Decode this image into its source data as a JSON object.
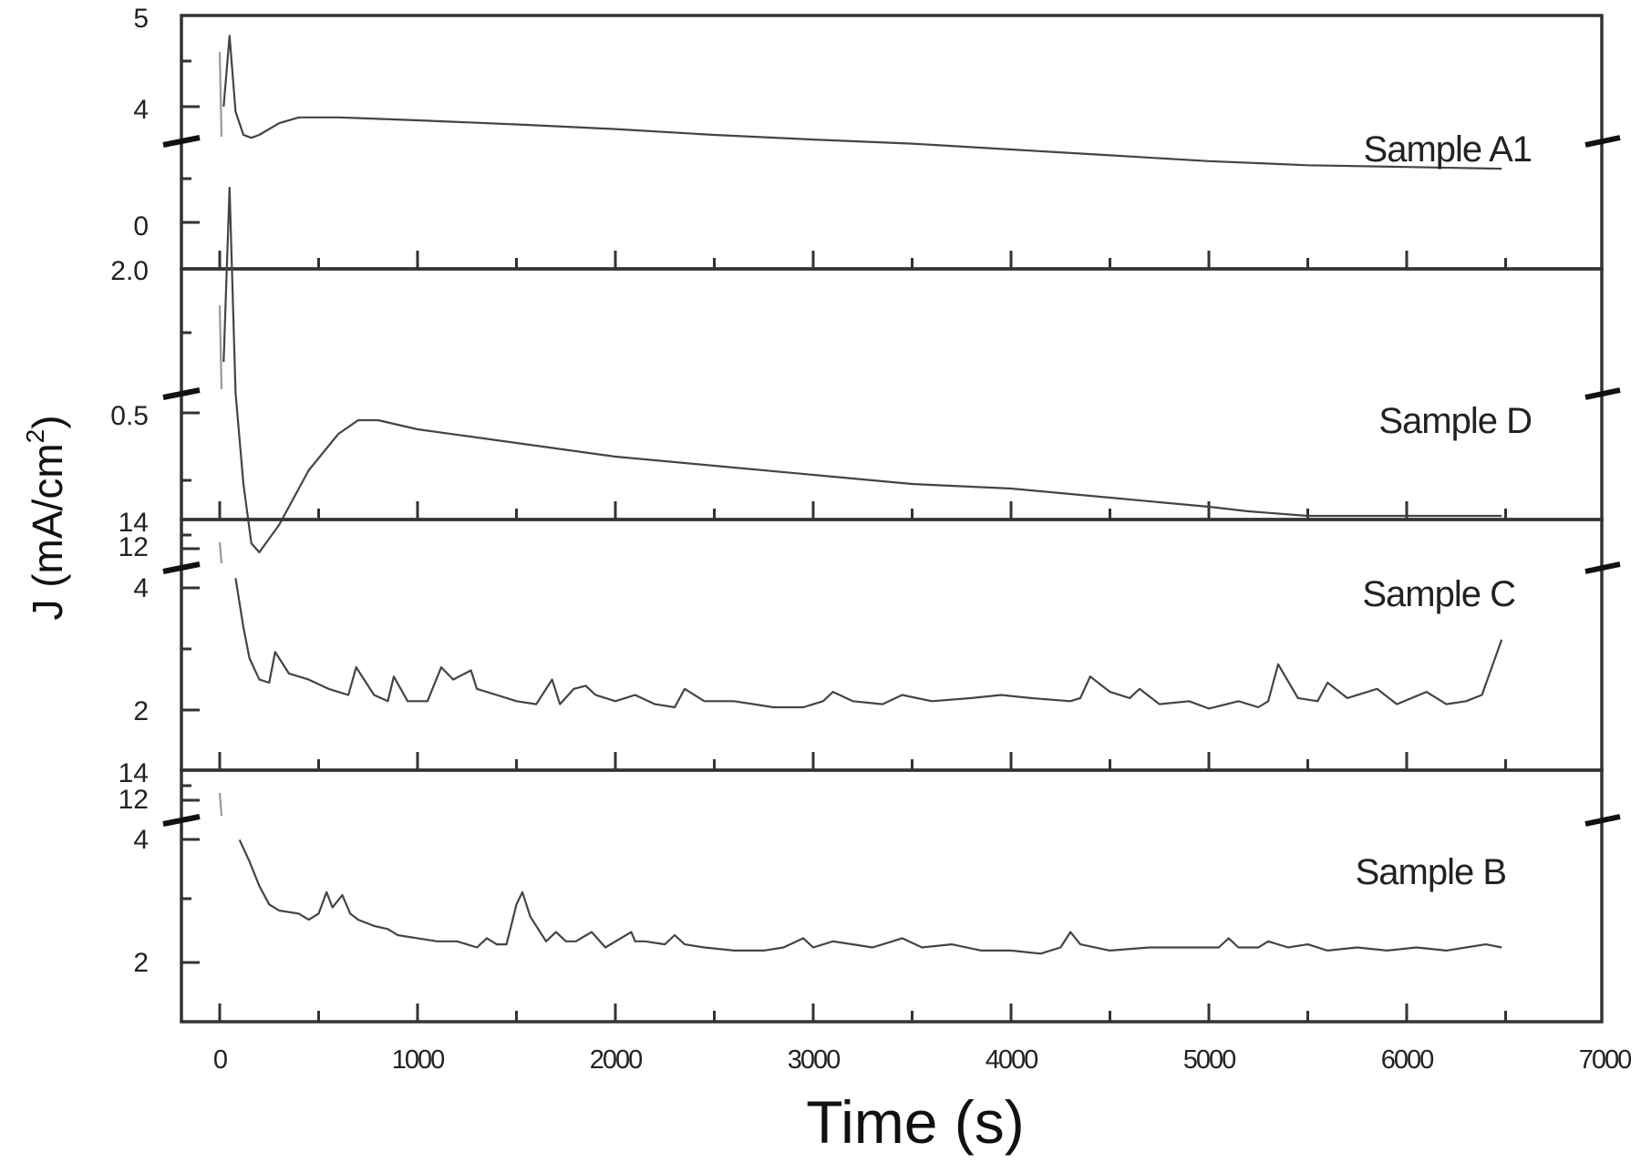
{
  "chart_data": {
    "type": "line",
    "title": "",
    "xlabel": "Time (s)",
    "ylabel": "J (mA/cm2)",
    "ylabel_parts": {
      "main": "J (mA/cm",
      "sup": "2",
      "close": ")"
    },
    "xlim": [
      -200,
      7000
    ],
    "x_ticks": [
      0,
      1000,
      2000,
      3000,
      4000,
      5000,
      6000,
      7000
    ],
    "x_tick_labels": [
      "0",
      "1000",
      "2000",
      "3000",
      "4000",
      "5000",
      "6000",
      "7000"
    ],
    "grid": false,
    "legend": "none (inline panel labels)",
    "layout": "4 vertically stacked panels sharing the time axis, each with a broken y-axis",
    "panels": [
      {
        "name": "Sample A1",
        "y_tick_labels": [
          "5",
          "4",
          "0"
        ],
        "y_tick_values_upper": [
          5,
          4
        ],
        "y_tick_values_lower": [
          0
        ],
        "axis_break": true,
        "series": {
          "x": [
            0,
            20,
            50,
            80,
            120,
            160,
            200,
            300,
            400,
            600,
            1000,
            1500,
            2000,
            2500,
            3000,
            3500,
            4000,
            4500,
            5000,
            5500,
            6000,
            6480
          ],
          "y": [
            4.7,
            4.0,
            3.2,
            1.9,
            1.5,
            1.45,
            1.5,
            1.7,
            1.8,
            1.8,
            1.75,
            1.68,
            1.6,
            1.5,
            1.42,
            1.35,
            1.25,
            1.15,
            1.05,
            0.98,
            0.95,
            0.92
          ]
        }
      },
      {
        "name": "Sample D",
        "y_tick_labels": [
          "2.0",
          "0.5"
        ],
        "y_tick_values_upper": [
          2.0
        ],
        "y_tick_values_lower": [
          0.5
        ],
        "axis_break": true,
        "series": {
          "x": [
            0,
            20,
            50,
            80,
            120,
            160,
            200,
            300,
            450,
            600,
            700,
            800,
            1000,
            1500,
            2000,
            2500,
            3000,
            3500,
            4000,
            4500,
            5000,
            5200,
            5500,
            6000,
            6480
          ],
          "y": [
            1.8,
            1.4,
            1.0,
            0.55,
            0.35,
            0.22,
            0.2,
            0.26,
            0.38,
            0.46,
            0.49,
            0.49,
            0.47,
            0.44,
            0.41,
            0.39,
            0.37,
            0.35,
            0.34,
            0.32,
            0.3,
            0.29,
            0.28,
            0.28,
            0.28
          ]
        }
      },
      {
        "name": "Sample C",
        "y_tick_labels": [
          "14",
          "12",
          "4",
          "2"
        ],
        "y_tick_values_upper": [
          14,
          12
        ],
        "y_tick_values_lower": [
          4,
          2
        ],
        "axis_break": true,
        "series": {
          "x": [
            0,
            80,
            120,
            150,
            200,
            250,
            280,
            350,
            450,
            550,
            650,
            690,
            780,
            850,
            880,
            950,
            1050,
            1120,
            1180,
            1270,
            1300,
            1400,
            1500,
            1600,
            1680,
            1720,
            1790,
            1850,
            1900,
            2000,
            2100,
            2200,
            2300,
            2350,
            2450,
            2600,
            2800,
            2950,
            3050,
            3100,
            3200,
            3350,
            3450,
            3600,
            3800,
            3950,
            4100,
            4300,
            4350,
            4400,
            4500,
            4600,
            4650,
            4750,
            4900,
            5000,
            5150,
            5250,
            5300,
            5350,
            5450,
            5550,
            5600,
            5700,
            5850,
            5950,
            6100,
            6200,
            6300,
            6380,
            6480
          ],
          "y": [
            13.0,
            4.1,
            3.3,
            2.8,
            2.45,
            2.4,
            2.9,
            2.55,
            2.45,
            2.3,
            2.2,
            2.65,
            2.2,
            2.1,
            2.5,
            2.1,
            2.1,
            2.65,
            2.45,
            2.6,
            2.3,
            2.2,
            2.1,
            2.05,
            2.45,
            2.05,
            2.3,
            2.35,
            2.2,
            2.1,
            2.2,
            2.05,
            2.0,
            2.3,
            2.1,
            2.1,
            2.0,
            2.0,
            2.1,
            2.25,
            2.1,
            2.05,
            2.2,
            2.1,
            2.15,
            2.2,
            2.15,
            2.1,
            2.15,
            2.5,
            2.25,
            2.15,
            2.3,
            2.05,
            2.1,
            1.98,
            2.1,
            2.0,
            2.1,
            2.7,
            2.15,
            2.1,
            2.4,
            2.15,
            2.3,
            2.05,
            2.25,
            2.05,
            2.1,
            2.2,
            3.1
          ]
        }
      },
      {
        "name": "Sample B",
        "y_tick_labels": [
          "14",
          "12",
          "4",
          "2"
        ],
        "y_tick_values_upper": [
          14,
          12
        ],
        "y_tick_values_lower": [
          4,
          2
        ],
        "axis_break": true,
        "series": {
          "x": [
            0,
            100,
            150,
            200,
            250,
            300,
            400,
            450,
            500,
            540,
            570,
            620,
            660,
            700,
            780,
            850,
            900,
            1000,
            1100,
            1200,
            1300,
            1350,
            1400,
            1450,
            1500,
            1530,
            1570,
            1650,
            1700,
            1750,
            1800,
            1880,
            1950,
            2080,
            2100,
            2150,
            2250,
            2300,
            2350,
            2450,
            2600,
            2750,
            2850,
            2950,
            3000,
            3100,
            3200,
            3300,
            3400,
            3450,
            3550,
            3700,
            3850,
            4000,
            4150,
            4250,
            4300,
            4350,
            4500,
            4700,
            4900,
            5050,
            5100,
            5150,
            5250,
            5300,
            5400,
            5500,
            5600,
            5750,
            5900,
            6050,
            6200,
            6300,
            6400,
            6480
          ],
          "y": [
            13.0,
            3.95,
            3.6,
            3.2,
            2.9,
            2.8,
            2.75,
            2.65,
            2.75,
            3.1,
            2.85,
            3.05,
            2.75,
            2.65,
            2.55,
            2.5,
            2.4,
            2.35,
            2.3,
            2.3,
            2.2,
            2.35,
            2.25,
            2.25,
            2.9,
            3.1,
            2.7,
            2.3,
            2.45,
            2.3,
            2.3,
            2.45,
            2.2,
            2.45,
            2.3,
            2.3,
            2.25,
            2.4,
            2.25,
            2.2,
            2.15,
            2.15,
            2.2,
            2.35,
            2.2,
            2.3,
            2.25,
            2.2,
            2.3,
            2.35,
            2.2,
            2.25,
            2.15,
            2.15,
            2.1,
            2.2,
            2.45,
            2.25,
            2.15,
            2.2,
            2.2,
            2.2,
            2.35,
            2.2,
            2.2,
            2.3,
            2.2,
            2.25,
            2.15,
            2.2,
            2.15,
            2.2,
            2.15,
            2.2,
            2.25,
            2.2
          ]
        }
      }
    ]
  }
}
